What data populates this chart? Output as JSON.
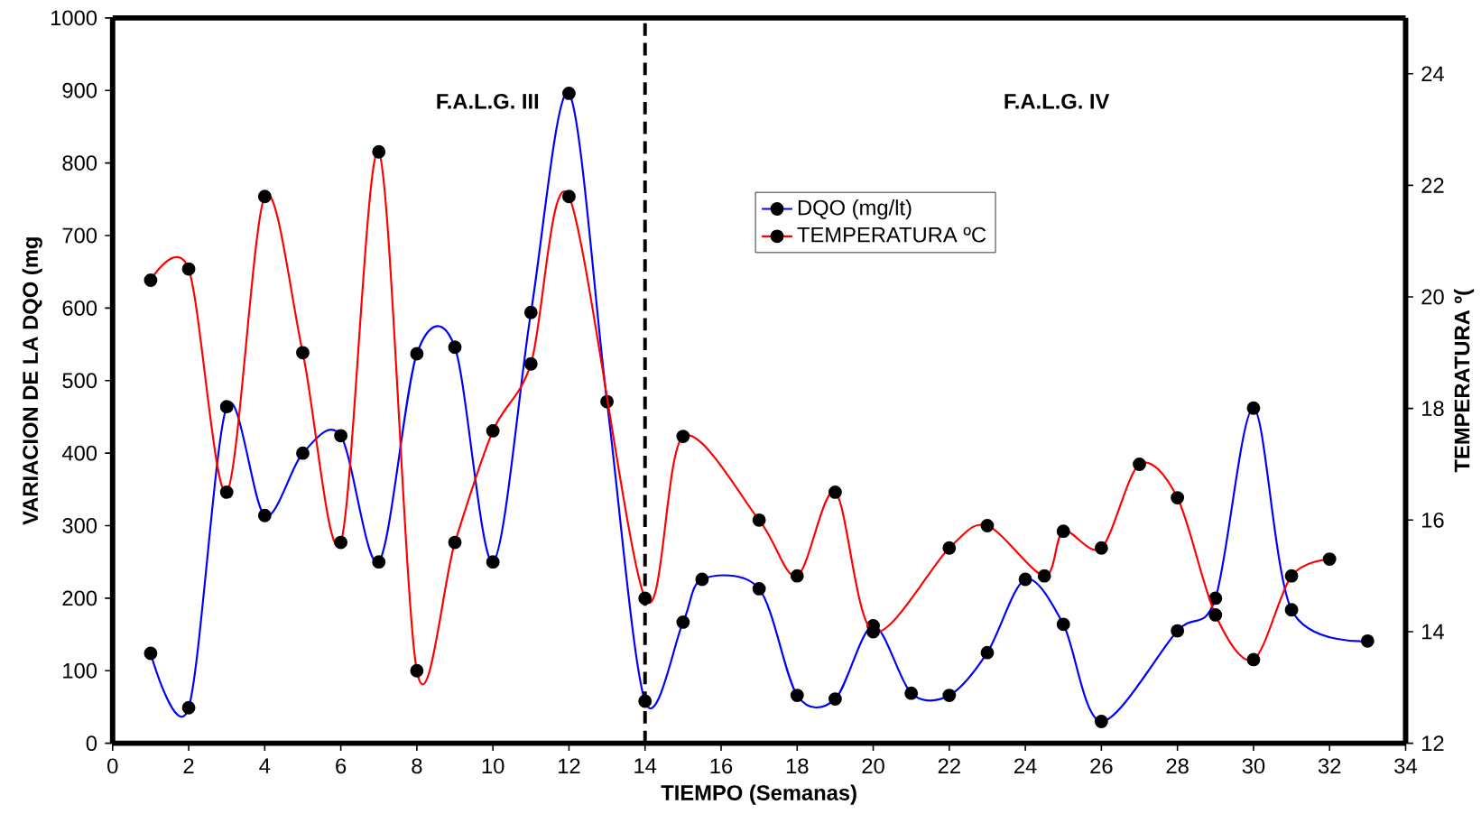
{
  "chart_data": {
    "type": "line",
    "xlabel": "TIEMPO (Semanas)",
    "ylabel": "VARIACION DE LA DQO (mg",
    "y2label": "TEMPERATURA º(",
    "xlim": [
      0,
      34
    ],
    "xticks": [
      0,
      2,
      4,
      6,
      8,
      10,
      12,
      14,
      16,
      18,
      20,
      22,
      24,
      26,
      28,
      30,
      32,
      34
    ],
    "ylim": [
      0,
      1000
    ],
    "yticks": [
      0,
      100,
      200,
      300,
      400,
      500,
      600,
      700,
      800,
      900,
      1000
    ],
    "y2lim": [
      12,
      25
    ],
    "y2ticks": [
      12,
      14,
      16,
      18,
      20,
      22,
      24
    ],
    "marker": "circle",
    "line_style": "solid",
    "legend": "top",
    "grid": false,
    "series": [
      {
        "name": "DQO (mg/lt)",
        "color": "#0000ff",
        "x": [
          1,
          2,
          3,
          4,
          5,
          6,
          7,
          8,
          9,
          10,
          11,
          12,
          13,
          14,
          15,
          15.5,
          17,
          18,
          19,
          20,
          21,
          22,
          23,
          24,
          25,
          26,
          28,
          29,
          30,
          31,
          33
        ],
        "values": [
          124,
          49,
          464,
          314,
          400,
          424,
          250,
          537,
          546,
          250,
          594,
          896,
          471,
          58,
          167,
          226,
          213,
          66,
          61,
          162,
          69,
          66,
          125,
          226,
          164,
          30,
          155,
          200,
          462,
          184,
          141
        ]
      },
      {
        "name": "TEMPERATURA ºC",
        "color": "#ff0000",
        "axis": "y2",
        "x": [
          1,
          2,
          3,
          4,
          5,
          6,
          7,
          8,
          9,
          10,
          11,
          12,
          13,
          14,
          15,
          17,
          18,
          19,
          20,
          22,
          23,
          24,
          24.5,
          25,
          26,
          27,
          28,
          29,
          30,
          31,
          32
        ],
        "values": [
          20.3,
          20.5,
          16.5,
          21.8,
          19.0,
          15.6,
          22.6,
          13.3,
          15.6,
          17.6,
          18.8,
          21.8,
          null,
          14.6,
          17.5,
          16.0,
          15.0,
          16.5,
          14.0,
          15.5,
          15.9,
          null,
          15.0,
          15.8,
          15.5,
          17.0,
          16.4,
          14.3,
          13.5,
          15.0,
          15.3
        ]
      }
    ],
    "ref_lines": [
      {
        "axis": "x",
        "value": 14,
        "line_style": "dashed",
        "color": "#000000"
      }
    ],
    "annotations": [
      "F.A.L.G. III",
      "F.A.L.G. IV"
    ]
  }
}
